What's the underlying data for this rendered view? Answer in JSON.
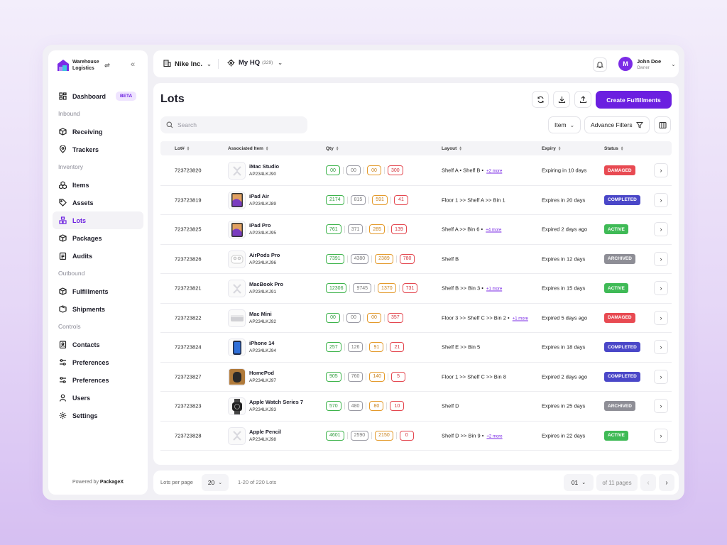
{
  "brand": {
    "name_line1": "Warehouse",
    "name_line2": "Logistics"
  },
  "sidebar": {
    "dashboard": "Dashboard",
    "beta": "BETA",
    "sections": {
      "inbound": "Inbound",
      "inventory": "Inventory",
      "outbound": "Outbound",
      "controls": "Controls"
    },
    "items": {
      "receiving": "Receiving",
      "trackers": "Trackers",
      "items": "Items",
      "assets": "Assets",
      "lots": "Lots",
      "packages": "Packages",
      "audits": "Audits",
      "fulfillments": "Fulfillments",
      "shipments": "Shipments",
      "contacts": "Contacts",
      "preferences1": "Preferences",
      "preferences2": "Preferences",
      "users": "Users",
      "settings": "Settings"
    },
    "powered_prefix": "Powered by",
    "powered_brand": "PackageX"
  },
  "topbar": {
    "org": "Nike Inc.",
    "hq": "My HQ",
    "hq_count": "(329)",
    "user_initial": "M",
    "user_name": "John Doe",
    "user_role": "Owner"
  },
  "page": {
    "title": "Lots",
    "create_button": "Create Fulfillments",
    "search_placeholder": "Search",
    "item_filter": "Item",
    "advance_filters": "Advance Filters"
  },
  "table": {
    "headers": {
      "lot": "Lot#",
      "item": "Associated Item",
      "qty": "Qty",
      "layout": "Layout",
      "expiry": "Expiry",
      "status": "Status"
    },
    "rows": [
      {
        "lot": "723723820",
        "name": "iMac Studio",
        "code": "AP234LKJ90",
        "thumb": "placeholder",
        "qty": [
          "00",
          "00",
          "00",
          "300"
        ],
        "layout": "Shelf A • Shelf B •",
        "more": "+2 more",
        "expiry": "Expiring in 10 days",
        "status": "DAMAGED"
      },
      {
        "lot": "723723819",
        "name": "iPad Air",
        "code": "AP234LKJ89",
        "thumb": "tablet",
        "qty": [
          "2174",
          "815",
          "591",
          "41"
        ],
        "layout": "Floor 1 >> Shelf A >> Bin 1",
        "more": "",
        "expiry": "Expires in 20 days",
        "status": "COMPLETED"
      },
      {
        "lot": "723723825",
        "name": "iPad Pro",
        "code": "AP234LKJ95",
        "thumb": "tablet",
        "qty": [
          "761",
          "371",
          "285",
          "139"
        ],
        "layout": "Shelf A >> Bin 6 •",
        "more": "+4 more",
        "expiry": "Expired 2 days ago",
        "status": "ACTIVE"
      },
      {
        "lot": "723723826",
        "name": "AirPods Pro",
        "code": "AP234LKJ96",
        "thumb": "airpods",
        "qty": [
          "7391",
          "4380",
          "2389",
          "780"
        ],
        "layout": "Shelf B",
        "more": "",
        "expiry": "Expires in 12 days",
        "status": "ARCHIVED"
      },
      {
        "lot": "723723821",
        "name": "MacBook Pro",
        "code": "AP234LKJ91",
        "thumb": "placeholder",
        "qty": [
          "12306",
          "9745",
          "1370",
          "731"
        ],
        "layout": "Shelf B >> Bin 3 •",
        "more": "+1 more",
        "expiry": "Expires in 15 days",
        "status": "ACTIVE"
      },
      {
        "lot": "723723822",
        "name": "Mac Mini",
        "code": "AP234LKJ92",
        "thumb": "macmini",
        "qty": [
          "00",
          "00",
          "00",
          "357"
        ],
        "layout": "Floor 3 >> Shelf C >> Bin 2 •",
        "more": "+1 more",
        "expiry": "Expired 5 days ago",
        "status": "DAMAGED"
      },
      {
        "lot": "723723824",
        "name": "iPhone 14",
        "code": "AP234LKJ94",
        "thumb": "phone",
        "qty": [
          "257",
          "126",
          "91",
          "21"
        ],
        "layout": "Shelf E >> Bin 5",
        "more": "",
        "expiry": "Expires in 18 days",
        "status": "COMPLETED"
      },
      {
        "lot": "723723827",
        "name": "HomePod",
        "code": "AP234LKJ97",
        "thumb": "homepod",
        "qty": [
          "905",
          "760",
          "140",
          "5"
        ],
        "layout": "Floor 1 >> Shelf C >> Bin 8",
        "more": "",
        "expiry": "Expired 2 days ago",
        "status": "COMPLETED"
      },
      {
        "lot": "723723823",
        "name": "Apple Watch Series 7",
        "code": "AP234LKJ93",
        "thumb": "watch",
        "qty": [
          "570",
          "480",
          "80",
          "10"
        ],
        "layout": "Shelf D",
        "more": "",
        "expiry": "Expires in 25 days",
        "status": "ARCHIVED"
      },
      {
        "lot": "723723828",
        "name": "Apple Pencil",
        "code": "AP234LKJ98",
        "thumb": "placeholder",
        "qty": [
          "4601",
          "2590",
          "2150",
          "0"
        ],
        "layout": "Shelf D >> Bin 9 •",
        "more": "+2 more",
        "expiry": "Expires in 22 days",
        "status": "ACTIVE"
      }
    ]
  },
  "status_colors": {
    "DAMAGED": "#e84a52",
    "COMPLETED": "#4a47c8",
    "ACTIVE": "#3fba56",
    "ARCHIVED": "#8e8e96"
  },
  "footer": {
    "lots_per_page_label": "Lots per page",
    "lots_per_page": "20",
    "range": "1-20 of 220 Lots",
    "page": "01",
    "of_pages": "of 11 pages"
  }
}
